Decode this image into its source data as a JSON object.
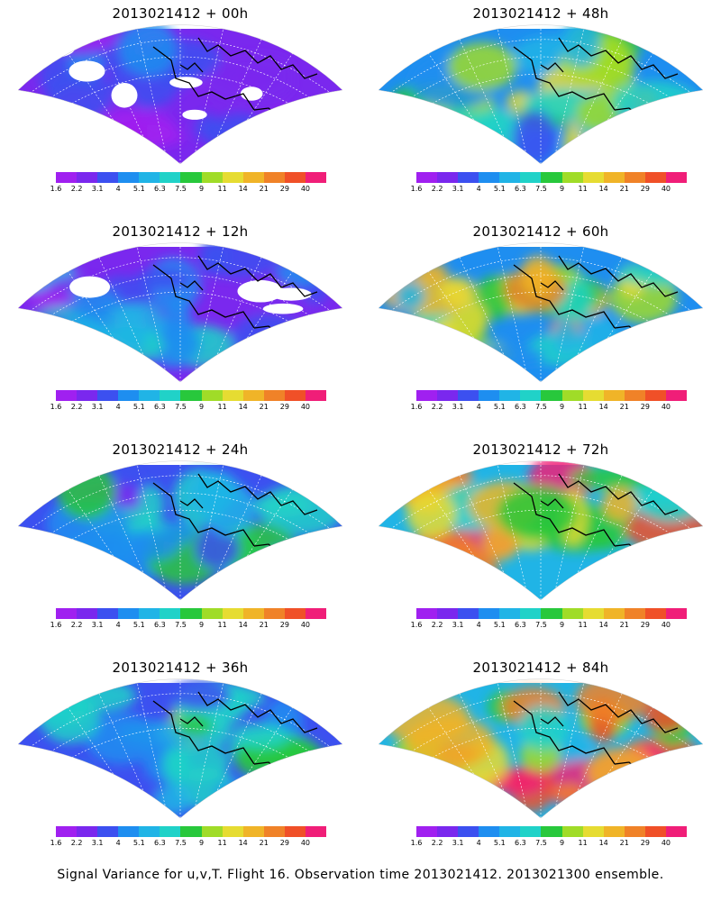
{
  "panels": [
    {
      "title": "2013021412 + 00h",
      "level": 0.1
    },
    {
      "title": "2013021412 + 48h",
      "level": 0.55
    },
    {
      "title": "2013021412 + 12h",
      "level": 0.25
    },
    {
      "title": "2013021412 + 60h",
      "level": 0.65
    },
    {
      "title": "2013021412 + 24h",
      "level": 0.35
    },
    {
      "title": "2013021412 + 72h",
      "level": 0.75
    },
    {
      "title": "2013021412 + 36h",
      "level": 0.45
    },
    {
      "title": "2013021412 + 84h",
      "level": 0.85
    }
  ],
  "colorbar": {
    "colors": [
      "#a020f0",
      "#7a28ee",
      "#3c50f0",
      "#1e8ef0",
      "#20b4e6",
      "#20d2c8",
      "#28c83c",
      "#a0dc28",
      "#e6dc32",
      "#f0b428",
      "#f08228",
      "#f05028",
      "#f01e78"
    ],
    "ticks": [
      "1.6",
      "2.2",
      "3.1",
      "4",
      "5.1",
      "6.3",
      "7.5",
      "9",
      "11",
      "14",
      "21",
      "29",
      "40"
    ]
  },
  "footer": "Signal Variance for u,v,T. Flight 16. Observation time 2013021412. 2013021300 ensemble."
}
